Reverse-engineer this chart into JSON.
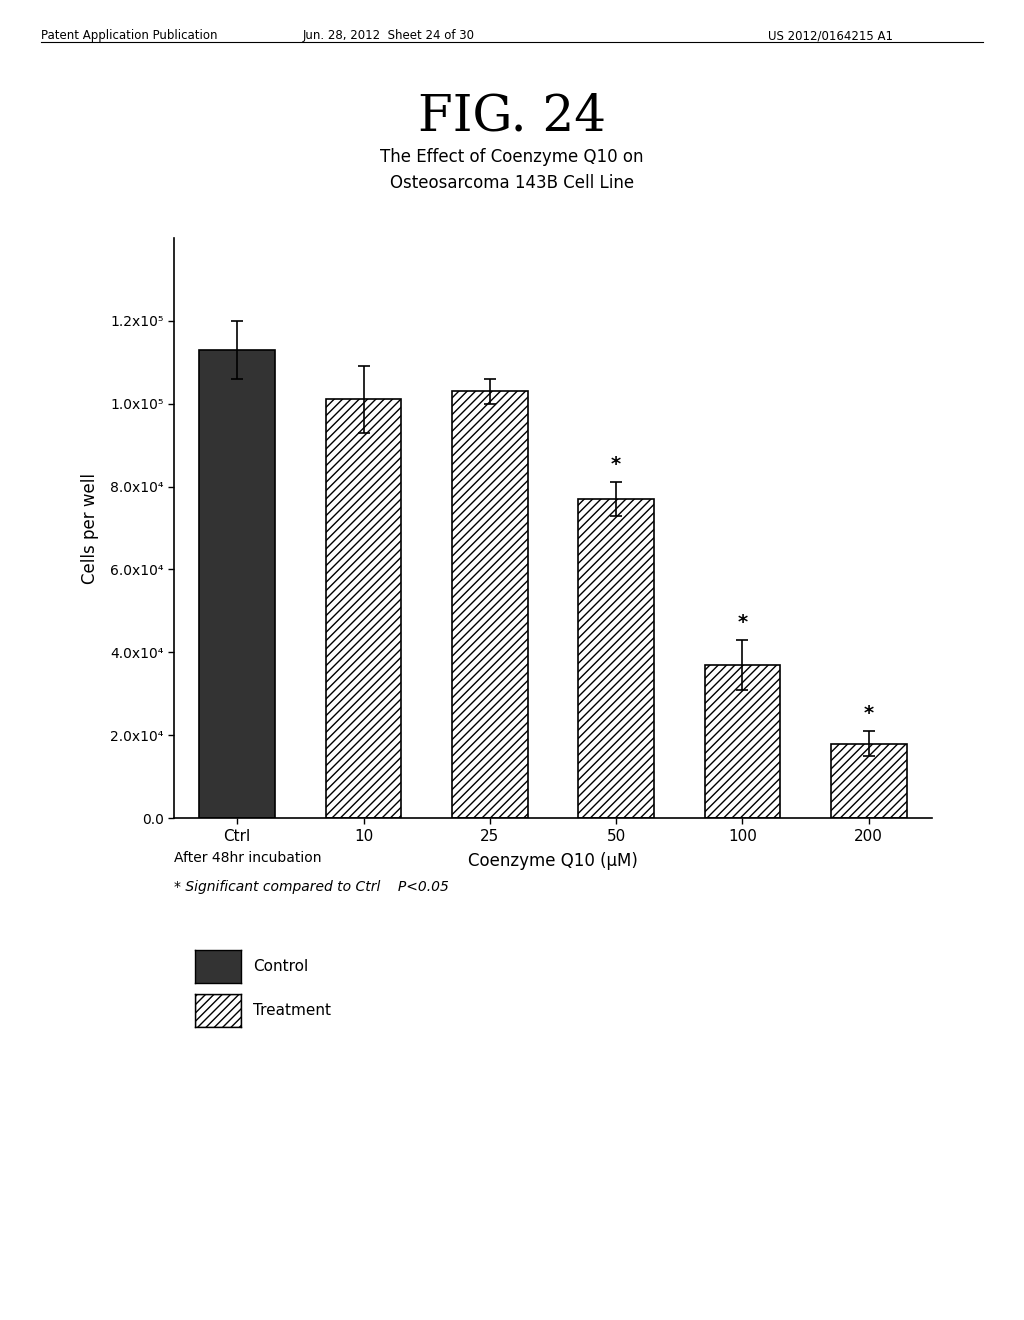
{
  "fig_title": "FIG. 24",
  "subtitle_line1": "The Effect of Coenzyme Q10 on",
  "subtitle_line2": "Osteosarcoma 143B Cell Line",
  "header_left": "Patent Application Publication",
  "header_center": "Jun. 28, 2012  Sheet 24 of 30",
  "header_right": "US 2012/0164215 A1",
  "categories": [
    "Ctrl",
    "10",
    "25",
    "50",
    "100",
    "200"
  ],
  "values": [
    113000,
    101000,
    103000,
    77000,
    37000,
    18000
  ],
  "errors": [
    7000,
    8000,
    3000,
    4000,
    6000,
    3000
  ],
  "xlabel": "Coenzyme Q10 (μM)",
  "ylabel": "Cells per well",
  "ylim": [
    0,
    140000
  ],
  "yticks": [
    0.0,
    20000,
    40000,
    60000,
    80000,
    100000,
    120000
  ],
  "ytick_labels": [
    "0.0",
    "2.0x10⁴",
    "4.0x10⁴",
    "6.0x10⁴",
    "8.0x10⁴",
    "1.0x10⁵",
    "1.2x10⁵"
  ],
  "significant": [
    false,
    false,
    false,
    true,
    true,
    true
  ],
  "footnote_line1": "After 48hr incubation",
  "footnote_line2": "* Significant compared to Ctrl    P<0.05",
  "legend_control": "Control",
  "legend_treatment": "Treatment",
  "bar_width": 0.6,
  "control_color": "#333333",
  "treatment_color": "#ffffff",
  "hatch_pattern": "////"
}
